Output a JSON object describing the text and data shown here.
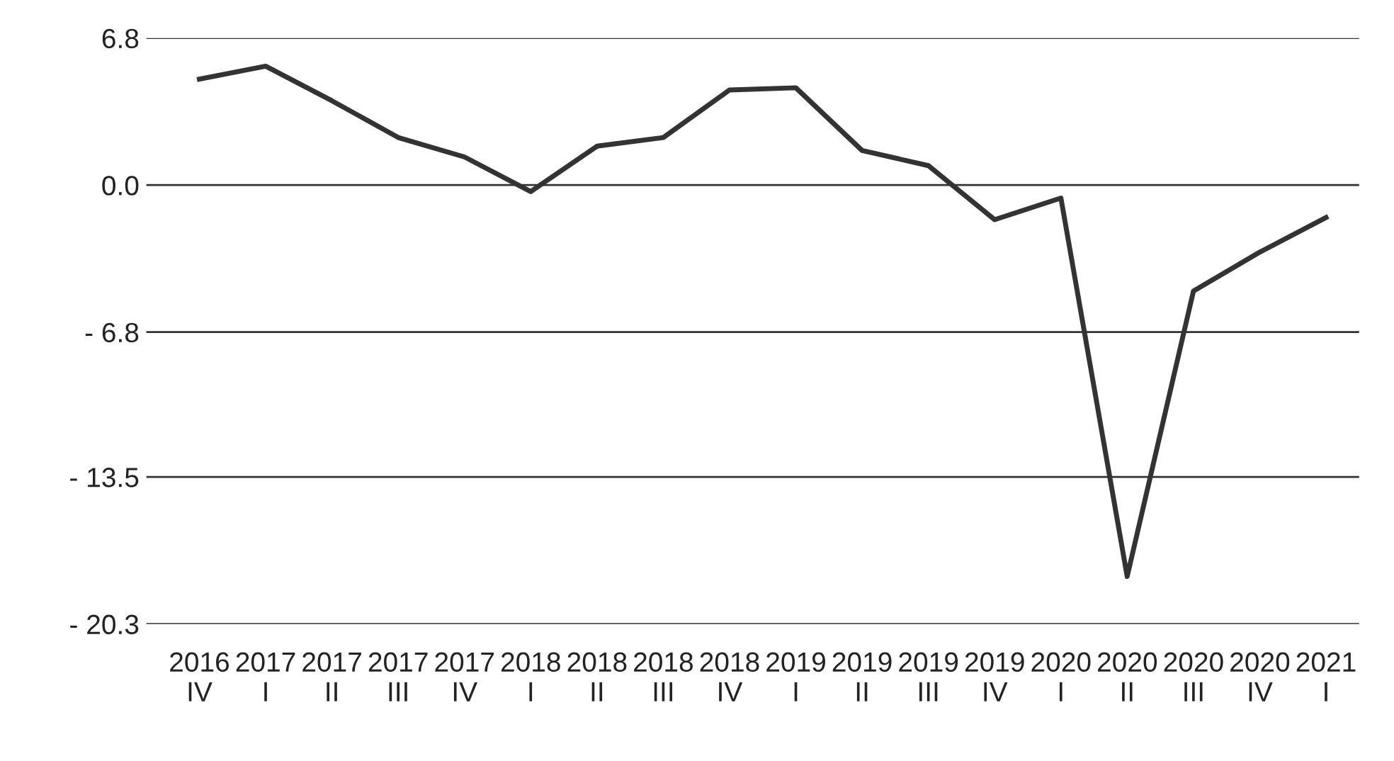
{
  "chart_data": {
    "type": "line",
    "categories": [
      "2016\nIV",
      "2017\nI",
      "2017\nII",
      "2017\nIII",
      "2017\nIV",
      "2018\nI",
      "2018\nII",
      "2018\nIII",
      "2018\nIV",
      "2019\nI",
      "2019\nII",
      "2019\nIII",
      "2019\nIV",
      "2020\nI",
      "2020\nII",
      "2020\nIII",
      "2020\nIV",
      "2021\nI"
    ],
    "series": [
      {
        "color": "#333333",
        "values": [
          4.9,
          5.5,
          3.9,
          2.2,
          1.3,
          -0.3,
          1.8,
          2.2,
          4.4,
          4.5,
          1.6,
          0.9,
          -1.6,
          -0.6,
          -18.1,
          -4.9,
          -3.1,
          -1.5
        ]
      }
    ],
    "ylim": [
      -20.3,
      6.8
    ],
    "yticks": [
      6.8,
      {
        "value": 0,
        "label": "0.0"
      },
      {
        "value": -6.8,
        "label": "- 6.8"
      },
      {
        "value": -13.5,
        "label": "- 13.5"
      },
      {
        "value": -20.3,
        "label": "- 20.3"
      }
    ],
    "grid": "y",
    "legend": false,
    "marker": "none",
    "line_style": "solid"
  }
}
